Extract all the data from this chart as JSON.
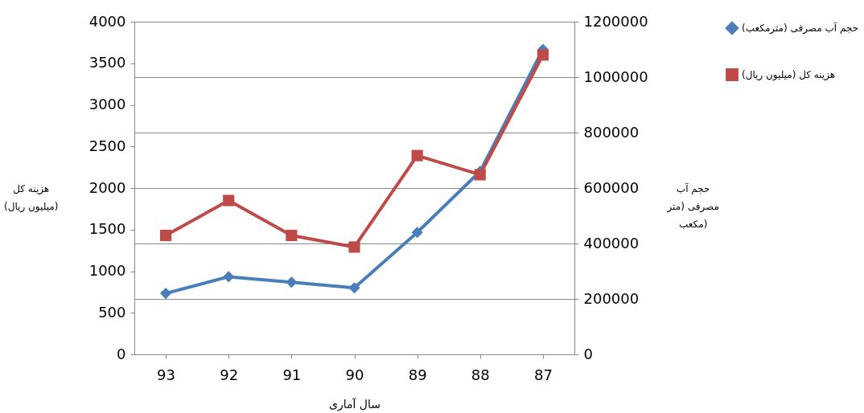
{
  "chart_data": {
    "type": "line",
    "xlabel": "سال آماری",
    "ylabel": "هزینه کل (میلیون ریال)",
    "y2label": "حجم آب مصرفی (متر مکعب)",
    "categories": [
      "93",
      "92",
      "91",
      "90",
      "89",
      "88",
      "87"
    ],
    "series": [
      {
        "name": "حجم آب مصرفی (مترمکعب)",
        "color": "#4a7ebb",
        "marker": "diamond",
        "axis": "y2",
        "values": [
          220000,
          280000,
          260000,
          240000,
          440000,
          660000,
          1100000
        ]
      },
      {
        "name": "هزینه کل (میلیون ریال)",
        "color": "#be4b48",
        "marker": "square",
        "values": [
          1430,
          1850,
          1430,
          1290,
          2390,
          2160,
          3600
        ]
      }
    ],
    "ylim": [
      0,
      4000
    ],
    "yticks": [
      0,
      500,
      1000,
      1500,
      2000,
      2500,
      3000,
      3500,
      4000
    ],
    "y2lim": [
      0,
      1200000
    ],
    "y2ticks": [
      0,
      200000,
      400000,
      600000,
      800000,
      1000000,
      1200000
    ],
    "grid": "y",
    "legend": "right"
  }
}
